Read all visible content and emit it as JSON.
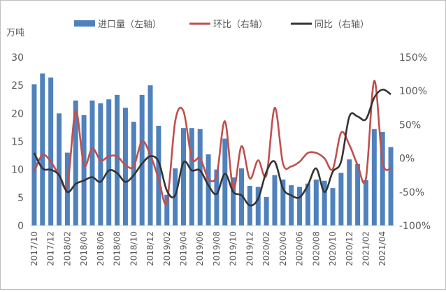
{
  "chart_data": {
    "type": "bar+line",
    "unit_label": "万吨",
    "categories": [
      "2017/10",
      "2017/11",
      "2017/12",
      "2018/01",
      "2018/02",
      "2018/03",
      "2018/04",
      "2018/05",
      "2018/06",
      "2018/07",
      "2018/08",
      "2018/09",
      "2018/10",
      "2018/11",
      "2018/12",
      "2019/01",
      "2019/02",
      "2019/03",
      "2019/04",
      "2019/05",
      "2019/06",
      "2019/07",
      "2019/08",
      "2019/09",
      "2019/10",
      "2019/11",
      "2019/12",
      "2020/01",
      "2020/02",
      "2020/03",
      "2020/04",
      "2020/05",
      "2020/06",
      "2020/07",
      "2020/08",
      "2020/09",
      "2020/10",
      "2020/11",
      "2020/12",
      "2021/01",
      "2021/02",
      "2021/03",
      "2021/04",
      "2021/05"
    ],
    "left_axis": {
      "min": 0,
      "max": 30,
      "ticks": [
        "0",
        "5",
        "10",
        "15",
        "20",
        "25",
        "30"
      ]
    },
    "right_axis": {
      "min": -100,
      "max": 150,
      "ticks": [
        "-100%",
        "-50%",
        "0%",
        "50%",
        "100%",
        "150%"
      ]
    },
    "legend_position": "top",
    "grid": false,
    "series": [
      {
        "name": "进口量（左轴）",
        "type": "bar",
        "axis": "left",
        "color": "#4f81bd",
        "values": [
          25.2,
          27.1,
          26.4,
          20,
          13,
          22.3,
          19.7,
          22.3,
          21.8,
          22.5,
          23.3,
          21,
          18.5,
          23.3,
          25,
          17.8,
          5.5,
          10.2,
          17.4,
          17.4,
          17.2,
          12.7,
          10,
          15.5,
          8.6,
          10.2,
          7.1,
          6.9,
          5.1,
          9,
          8.2,
          7.2,
          6.9,
          7.5,
          8.2,
          8,
          6.7,
          9.4,
          11.8,
          11,
          8.1,
          17.2,
          16.7,
          14
        ]
      },
      {
        "name": "环比（右轴）",
        "type": "line",
        "axis": "right",
        "color": "#c0504d",
        "values": [
          -20,
          5,
          -5,
          -25,
          -40,
          70,
          -10,
          15,
          -3,
          3,
          3,
          -10,
          -12,
          25,
          5,
          -30,
          -65,
          55,
          70,
          0,
          0,
          -30,
          -25,
          55,
          -45,
          18,
          -30,
          -3,
          -25,
          75,
          -8,
          -12,
          -5,
          8,
          8,
          0,
          -16,
          38,
          20,
          -10,
          -30,
          115,
          -5,
          -15
        ]
      },
      {
        "name": "同比（右轴）",
        "type": "line",
        "axis": "right",
        "color": "#333333",
        "values": [
          8,
          -15,
          -17,
          -25,
          -50,
          -38,
          -33,
          -28,
          -35,
          -18,
          -22,
          -35,
          -25,
          -8,
          3,
          -5,
          -48,
          -55,
          -6,
          -18,
          -18,
          -40,
          -53,
          -23,
          -50,
          -55,
          -70,
          -60,
          -20,
          -5,
          -45,
          -55,
          -58,
          -40,
          -15,
          -50,
          -20,
          -5,
          62,
          62,
          58,
          90,
          102,
          95
        ]
      }
    ]
  }
}
